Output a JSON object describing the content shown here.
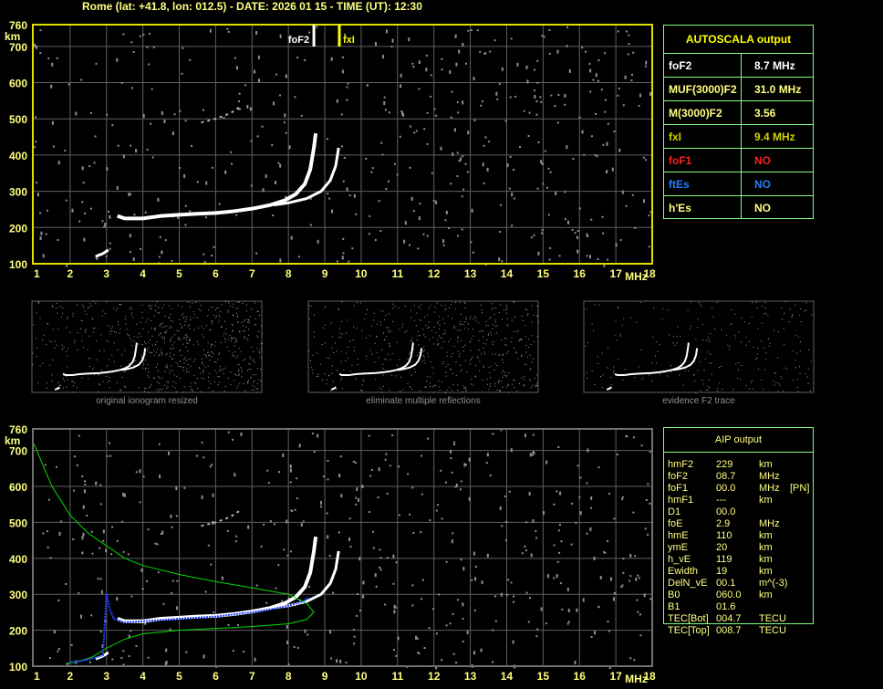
{
  "title": "Rome (lat: +41.8, lon: 012.5) - DATE: 2026 01 15 - TIME (UT): 12:30",
  "colors": {
    "accent": "#ffff80",
    "table_border": "#80ff80",
    "grid": "#606060",
    "o_trace": "#ffffff",
    "fit_profile": "#00dd00",
    "fit_trace": "#2040ff",
    "fxI_marker": "#ffff00",
    "foF1": "#ff2020",
    "ftEs": "#1e7fff"
  },
  "chart_data": {
    "type": "scatter",
    "xlabel": "MHz",
    "ylabel": "km",
    "xlim": [
      1,
      18
    ],
    "ylim": [
      100,
      760
    ],
    "x_ticks": [
      "1",
      "2",
      "3",
      "4",
      "5",
      "6",
      "7",
      "8",
      "9",
      "10",
      "11",
      "12",
      "13",
      "14",
      "15",
      "16",
      "17",
      "18"
    ],
    "y_ticks": [
      "100",
      "200",
      "300",
      "400",
      "500",
      "600",
      "700",
      "760"
    ],
    "grid": true,
    "markers": [
      {
        "label": "foF2",
        "freq": 8.7,
        "color": "#ffffff"
      },
      {
        "label": "fxI",
        "freq": 9.4,
        "color": "#ffff00"
      }
    ],
    "traces": {
      "o_mode": [
        [
          3.3,
          232
        ],
        [
          3.5,
          225
        ],
        [
          4.0,
          225
        ],
        [
          4.5,
          232
        ],
        [
          5.0,
          235
        ],
        [
          5.5,
          238
        ],
        [
          6.0,
          240
        ],
        [
          6.5,
          245
        ],
        [
          7.0,
          252
        ],
        [
          7.5,
          262
        ],
        [
          7.9,
          275
        ],
        [
          8.2,
          292
        ],
        [
          8.45,
          320
        ],
        [
          8.6,
          360
        ],
        [
          8.7,
          420
        ],
        [
          8.75,
          460
        ]
      ],
      "x_mode": [
        [
          7.6,
          262
        ],
        [
          8.0,
          268
        ],
        [
          8.5,
          280
        ],
        [
          8.9,
          300
        ],
        [
          9.15,
          330
        ],
        [
          9.3,
          370
        ],
        [
          9.38,
          420
        ]
      ],
      "e_trace": [
        [
          2.7,
          120
        ],
        [
          2.9,
          128
        ],
        [
          3.05,
          138
        ]
      ],
      "faint": [
        [
          5.6,
          490
        ],
        [
          6.0,
          500
        ],
        [
          6.4,
          515
        ],
        [
          6.7,
          535
        ]
      ]
    },
    "profile": [
      [
        1.0,
        720
      ],
      [
        1.5,
        600
      ],
      [
        2.0,
        520
      ],
      [
        2.5,
        470
      ],
      [
        3.0,
        435
      ],
      [
        3.5,
        400
      ],
      [
        4.0,
        380
      ],
      [
        5.0,
        355
      ],
      [
        6.0,
        335
      ],
      [
        7.0,
        318
      ],
      [
        8.0,
        300
      ],
      [
        8.5,
        275
      ],
      [
        8.7,
        250
      ],
      [
        8.5,
        230
      ],
      [
        8.0,
        218
      ],
      [
        7.0,
        210
      ],
      [
        6.0,
        205
      ],
      [
        5.0,
        200
      ],
      [
        4.0,
        190
      ],
      [
        3.5,
        175
      ],
      [
        3.0,
        150
      ],
      [
        2.6,
        125
      ],
      [
        2.2,
        112
      ],
      [
        1.9,
        108
      ]
    ],
    "fit_trace": [
      [
        2.0,
        110
      ],
      [
        2.5,
        118
      ],
      [
        2.9,
        130
      ],
      [
        3.0,
        300
      ],
      [
        3.1,
        255
      ],
      [
        3.2,
        232
      ],
      [
        3.5,
        222
      ],
      [
        4.0,
        225
      ],
      [
        5.0,
        232
      ],
      [
        6.0,
        238
      ],
      [
        7.0,
        250
      ],
      [
        7.5,
        258
      ],
      [
        8.0,
        268
      ],
      [
        8.4,
        280
      ],
      [
        8.55,
        292
      ]
    ]
  },
  "autoscala": {
    "title": "AUTOSCALA output",
    "rows": [
      {
        "key": "foF2",
        "value": "8.7 MHz",
        "color": "#ffffff"
      },
      {
        "key": "MUF(3000)F2",
        "value": "31.0 MHz",
        "color": "#ffff80"
      },
      {
        "key": "M(3000)F2",
        "value": "3.56",
        "color": "#ffff80"
      },
      {
        "key": "fxI",
        "value": "9.4 MHz",
        "color": "#d0d000"
      },
      {
        "key": "foF1",
        "value": "NO",
        "color": "#ff2020",
        "vcolor": "#ff2020"
      },
      {
        "key": "ftEs",
        "value": "NO",
        "color": "#1e7fff",
        "vcolor": "#1e7fff"
      },
      {
        "key": "h'Es",
        "value": "NO",
        "color": "#ffff80",
        "vcolor": "#ffff80"
      }
    ]
  },
  "aip": {
    "title": "AIP output",
    "rows": [
      {
        "k": "hmF2",
        "v": "229",
        "u": "km",
        "x": ""
      },
      {
        "k": "foF2",
        "v": "08.7",
        "u": "MHz",
        "x": ""
      },
      {
        "k": "foF1",
        "v": "00.0",
        "u": "MHz",
        "x": "[PN]"
      },
      {
        "k": "hmF1",
        "v": "---",
        "u": "km",
        "x": ""
      },
      {
        "k": "D1",
        "v": "00.0",
        "u": "",
        "x": ""
      },
      {
        "k": "foE",
        "v": "2.9",
        "u": "MHz",
        "x": ""
      },
      {
        "k": "hmE",
        "v": "110",
        "u": "km",
        "x": ""
      },
      {
        "k": "ymE",
        "v": "20",
        "u": "km",
        "x": ""
      },
      {
        "k": "h_vE",
        "v": "119",
        "u": "km",
        "x": ""
      },
      {
        "k": "Ewidth",
        "v": "19",
        "u": "km",
        "x": ""
      },
      {
        "k": "DelN_vE",
        "v": "00.1",
        "u": "m^(-3)",
        "x": ""
      },
      {
        "k": "B0",
        "v": "060.0",
        "u": "km",
        "x": ""
      },
      {
        "k": "B1",
        "v": "01.6",
        "u": "",
        "x": ""
      },
      {
        "k": "TEC[Bot]",
        "v": "004.7",
        "u": "TECU",
        "x": ""
      },
      {
        "k": "TEC[Top]",
        "v": "008.7",
        "u": "TECU",
        "x": ""
      }
    ]
  },
  "thumbnails": [
    {
      "caption": "original ionogram resized"
    },
    {
      "caption": "eliminate multiple reflections"
    },
    {
      "caption": "evidence F2 trace"
    }
  ]
}
